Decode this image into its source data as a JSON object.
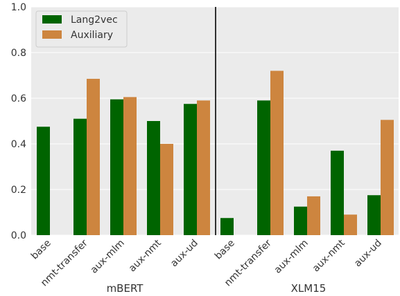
{
  "chart_data": {
    "type": "bar",
    "groups": [
      {
        "label": "mBERT",
        "categories": [
          "base",
          "nmt-transfer",
          "aux-mlm",
          "aux-nmt",
          "aux-ud"
        ],
        "series": [
          {
            "name": "Lang2vec",
            "values": [
              0.475,
              0.51,
              0.595,
              0.5,
              0.575
            ]
          },
          {
            "name": "Auxiliary",
            "values": [
              0.0,
              0.685,
              0.605,
              0.4,
              0.59
            ]
          }
        ]
      },
      {
        "label": "XLM15",
        "categories": [
          "base",
          "nmt-transfer",
          "aux-mlm",
          "aux-nmt",
          "aux-ud"
        ],
        "series": [
          {
            "name": "Lang2vec",
            "values": [
              0.075,
              0.59,
              0.125,
              0.37,
              0.175
            ]
          },
          {
            "name": "Auxiliary",
            "values": [
              0.0,
              0.72,
              0.17,
              0.09,
              0.505
            ]
          }
        ]
      }
    ],
    "series_colors": {
      "Lang2vec": "#006400",
      "Auxiliary": "#CD853F"
    },
    "ylim": [
      0,
      1.0
    ],
    "yticks": [
      "0.0",
      "0.2",
      "0.4",
      "0.6",
      "0.8",
      "1.0"
    ],
    "grid": true,
    "legend": {
      "position": "top-left",
      "entries": [
        "Lang2vec",
        "Auxiliary"
      ]
    }
  }
}
